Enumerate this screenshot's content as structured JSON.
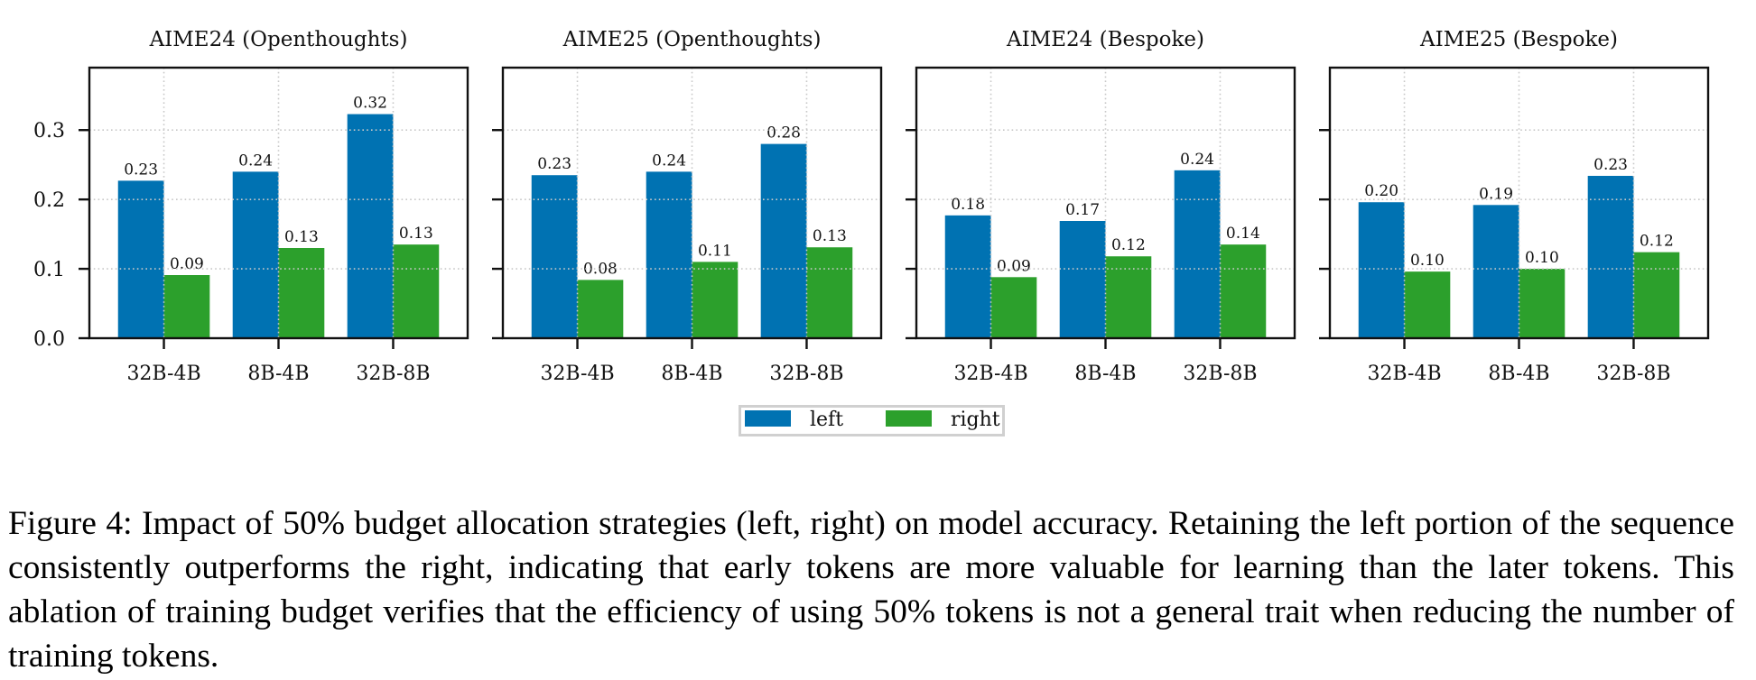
{
  "chart_data": {
    "type": "bar",
    "layout": "1x4 subplots, shared y-axis",
    "categories": [
      "32B-4B",
      "8B-4B",
      "32B-8B"
    ],
    "ylim": [
      0,
      0.39
    ],
    "xlim": [
      -0.65,
      2.65
    ],
    "yticks": [
      0.0,
      0.1,
      0.2,
      0.3
    ],
    "ytick_labels": [
      "0.0",
      "0.1",
      "0.2",
      "0.3"
    ],
    "grid": true,
    "xlabel": "",
    "ylabel": "",
    "legend": {
      "placement": "bottom-center",
      "entries": [
        {
          "name": "left",
          "color": "#0072B2"
        },
        {
          "name": "right",
          "color": "#2CA02C"
        }
      ]
    },
    "panels": [
      {
        "title": "AIME24 (Openthoughts)",
        "series": [
          {
            "name": "left",
            "values": [
              0.227,
              0.24,
              0.323
            ],
            "labels": [
              "0.23",
              "0.24",
              "0.32"
            ]
          },
          {
            "name": "right",
            "values": [
              0.091,
              0.13,
              0.135
            ],
            "labels": [
              "0.09",
              "0.13",
              "0.13"
            ]
          }
        ]
      },
      {
        "title": "AIME25 (Openthoughts)",
        "series": [
          {
            "name": "left",
            "values": [
              0.235,
              0.24,
              0.28
            ],
            "labels": [
              "0.23",
              "0.24",
              "0.28"
            ]
          },
          {
            "name": "right",
            "values": [
              0.084,
              0.11,
              0.131
            ],
            "labels": [
              "0.08",
              "0.11",
              "0.13"
            ]
          }
        ]
      },
      {
        "title": "AIME24 (Bespoke)",
        "series": [
          {
            "name": "left",
            "values": [
              0.177,
              0.169,
              0.242
            ],
            "labels": [
              "0.18",
              "0.17",
              "0.24"
            ]
          },
          {
            "name": "right",
            "values": [
              0.088,
              0.118,
              0.135
            ],
            "labels": [
              "0.09",
              "0.12",
              "0.14"
            ]
          }
        ]
      },
      {
        "title": "AIME25 (Bespoke)",
        "series": [
          {
            "name": "left",
            "values": [
              0.196,
              0.192,
              0.234
            ],
            "labels": [
              "0.20",
              "0.19",
              "0.23"
            ]
          },
          {
            "name": "right",
            "values": [
              0.096,
              0.1,
              0.124
            ],
            "labels": [
              "0.10",
              "0.10",
              "0.12"
            ]
          }
        ]
      }
    ]
  },
  "caption": "Figure 4: Impact of 50% budget allocation strategies (left, right) on model accuracy. Retaining the left portion of the sequence consistently outperforms the right, indicating that early tokens are more valuable for learning than the later tokens. This ablation of training budget verifies that the efficiency of using 50% tokens is not a general trait when reducing the number of training tokens."
}
